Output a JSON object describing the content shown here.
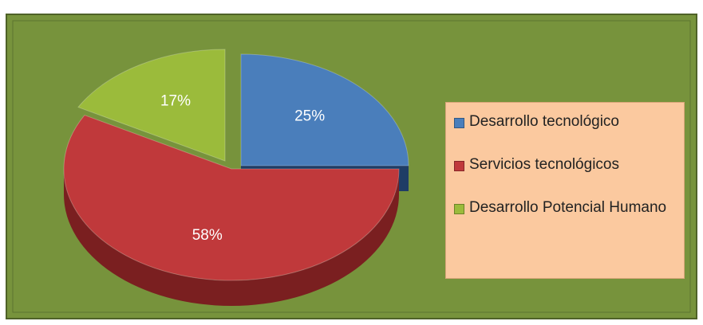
{
  "chart_data": {
    "type": "pie",
    "categories": [
      "Desarrollo tecnológico",
      "Servicios tecnológicos",
      "Desarrollo Potencial Humano"
    ],
    "values": [
      25,
      58,
      17
    ],
    "value_labels": [
      "25%",
      "58%",
      "17%"
    ],
    "colors": [
      "#4a7ebb",
      "#c0393b",
      "#9bbb3b"
    ],
    "side_colors": [
      "#1f3d66",
      "#7a1f20",
      "#5e7522"
    ],
    "legend": "right"
  }
}
